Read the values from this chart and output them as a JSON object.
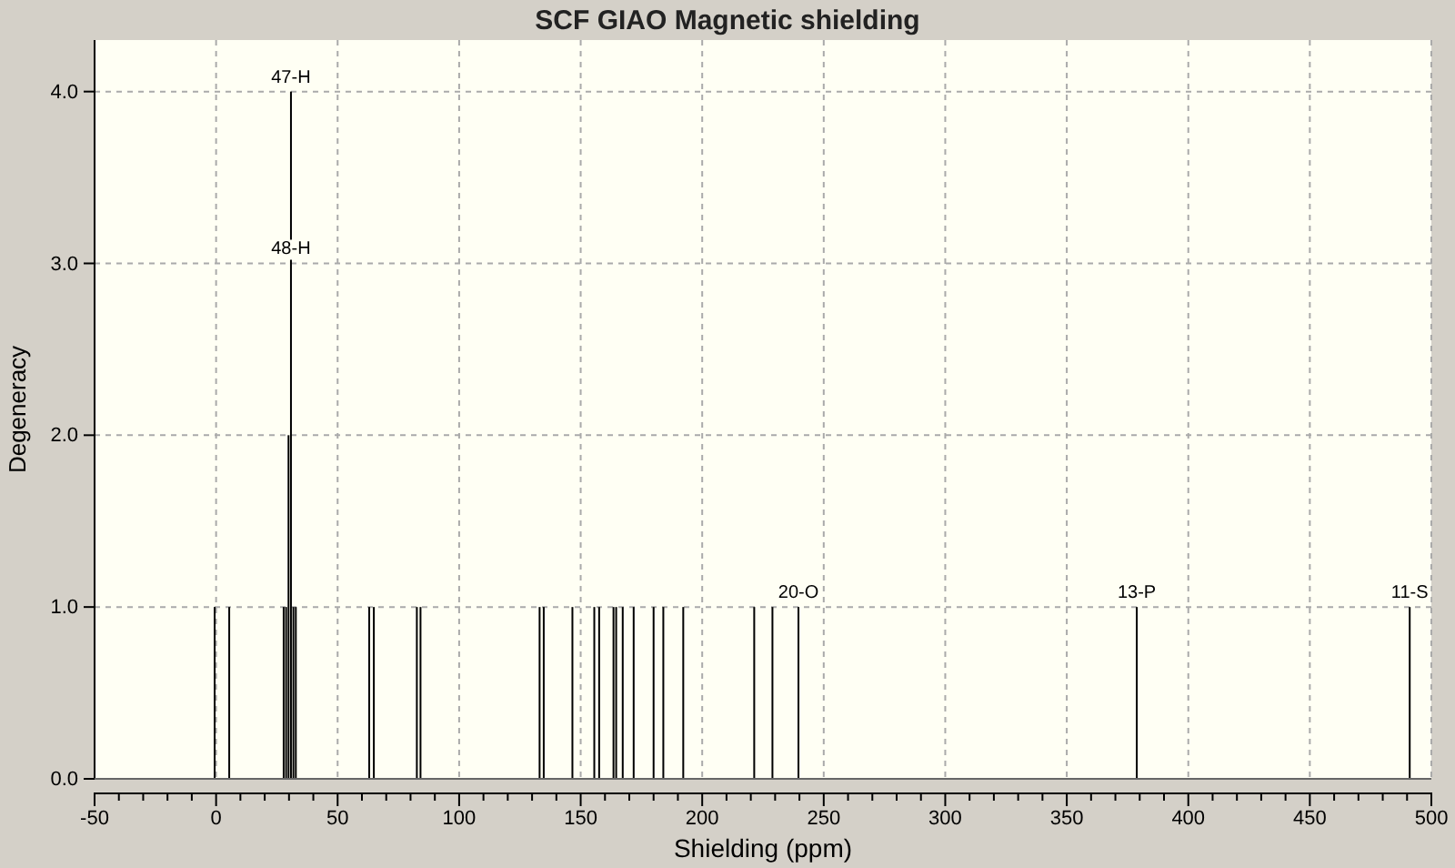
{
  "chart_data": {
    "type": "bar",
    "title": "SCF GIAO Magnetic shielding",
    "xlabel": "Shielding (ppm)",
    "ylabel": "Degeneracy",
    "x": [
      -0.6,
      5.4,
      27.8,
      28.8,
      29.8,
      30.8,
      31.8,
      32.8,
      63.0,
      64.9,
      82.6,
      84.1,
      133.1,
      134.8,
      146.6,
      155.6,
      157.6,
      163.5,
      164.6,
      167.3,
      171.8,
      180.0,
      184.0,
      192.2,
      221.4,
      228.9,
      239.6,
      378.8,
      491.1
    ],
    "values": [
      1,
      1,
      1,
      1,
      2,
      4,
      1,
      1,
      1,
      1,
      1,
      1,
      1,
      1,
      1,
      1,
      1,
      1,
      1,
      1,
      1,
      1,
      1,
      1,
      1,
      1,
      1,
      1,
      1
    ],
    "color": "#000000",
    "annotations": [
      {
        "text": "47-H",
        "x": 30.8,
        "y": 4
      },
      {
        "text": "48-H",
        "x": 30.8,
        "y": 3
      },
      {
        "text": "20-O",
        "x": 239.6,
        "y": 1
      },
      {
        "text": "13-P",
        "x": 378.8,
        "y": 1
      },
      {
        "text": "11-S",
        "x": 491.1,
        "y": 1
      }
    ],
    "xlim": [
      -50,
      500
    ],
    "xticks": [
      -50,
      {
        "value": -40,
        "label": null
      },
      {
        "value": -30,
        "label": null
      },
      {
        "value": -20,
        "label": null
      },
      {
        "value": -10,
        "label": null
      },
      0,
      {
        "value": 10,
        "label": null
      },
      {
        "value": 20,
        "label": null
      },
      {
        "value": 30,
        "label": null
      },
      {
        "value": 40,
        "label": null
      },
      50,
      {
        "value": 60,
        "label": null
      },
      {
        "value": 70,
        "label": null
      },
      {
        "value": 80,
        "label": null
      },
      {
        "value": 90,
        "label": null
      },
      100,
      {
        "value": 110,
        "label": null
      },
      {
        "value": 120,
        "label": null
      },
      {
        "value": 130,
        "label": null
      },
      {
        "value": 140,
        "label": null
      },
      150,
      {
        "value": 160,
        "label": null
      },
      {
        "value": 170,
        "label": null
      },
      {
        "value": 180,
        "label": null
      },
      {
        "value": 190,
        "label": null
      },
      200,
      {
        "value": 210,
        "label": null
      },
      {
        "value": 220,
        "label": null
      },
      {
        "value": 230,
        "label": null
      },
      {
        "value": 240,
        "label": null
      },
      250,
      {
        "value": 260,
        "label": null
      },
      {
        "value": 270,
        "label": null
      },
      {
        "value": 280,
        "label": null
      },
      {
        "value": 290,
        "label": null
      },
      300,
      {
        "value": 310,
        "label": null
      },
      {
        "value": 320,
        "label": null
      },
      {
        "value": 330,
        "label": null
      },
      {
        "value": 340,
        "label": null
      },
      350,
      {
        "value": 360,
        "label": null
      },
      {
        "value": 370,
        "label": null
      },
      {
        "value": 380,
        "label": null
      },
      {
        "value": 390,
        "label": null
      },
      400,
      {
        "value": 410,
        "label": null
      },
      {
        "value": 420,
        "label": null
      },
      {
        "value": 430,
        "label": null
      },
      {
        "value": 440,
        "label": null
      },
      450,
      {
        "value": 460,
        "label": null
      },
      {
        "value": 470,
        "label": null
      },
      {
        "value": 480,
        "label": null
      },
      {
        "value": 490,
        "label": null
      },
      500
    ],
    "ylim": [
      0,
      4.3
    ],
    "yticks": [
      {
        "value": 0,
        "label": "0.0"
      },
      {
        "value": 1,
        "label": "1.0"
      },
      {
        "value": 2,
        "label": "2.0"
      },
      {
        "value": 3,
        "label": "3.0"
      },
      {
        "value": 4,
        "label": "4.0"
      }
    ],
    "grid": true
  }
}
